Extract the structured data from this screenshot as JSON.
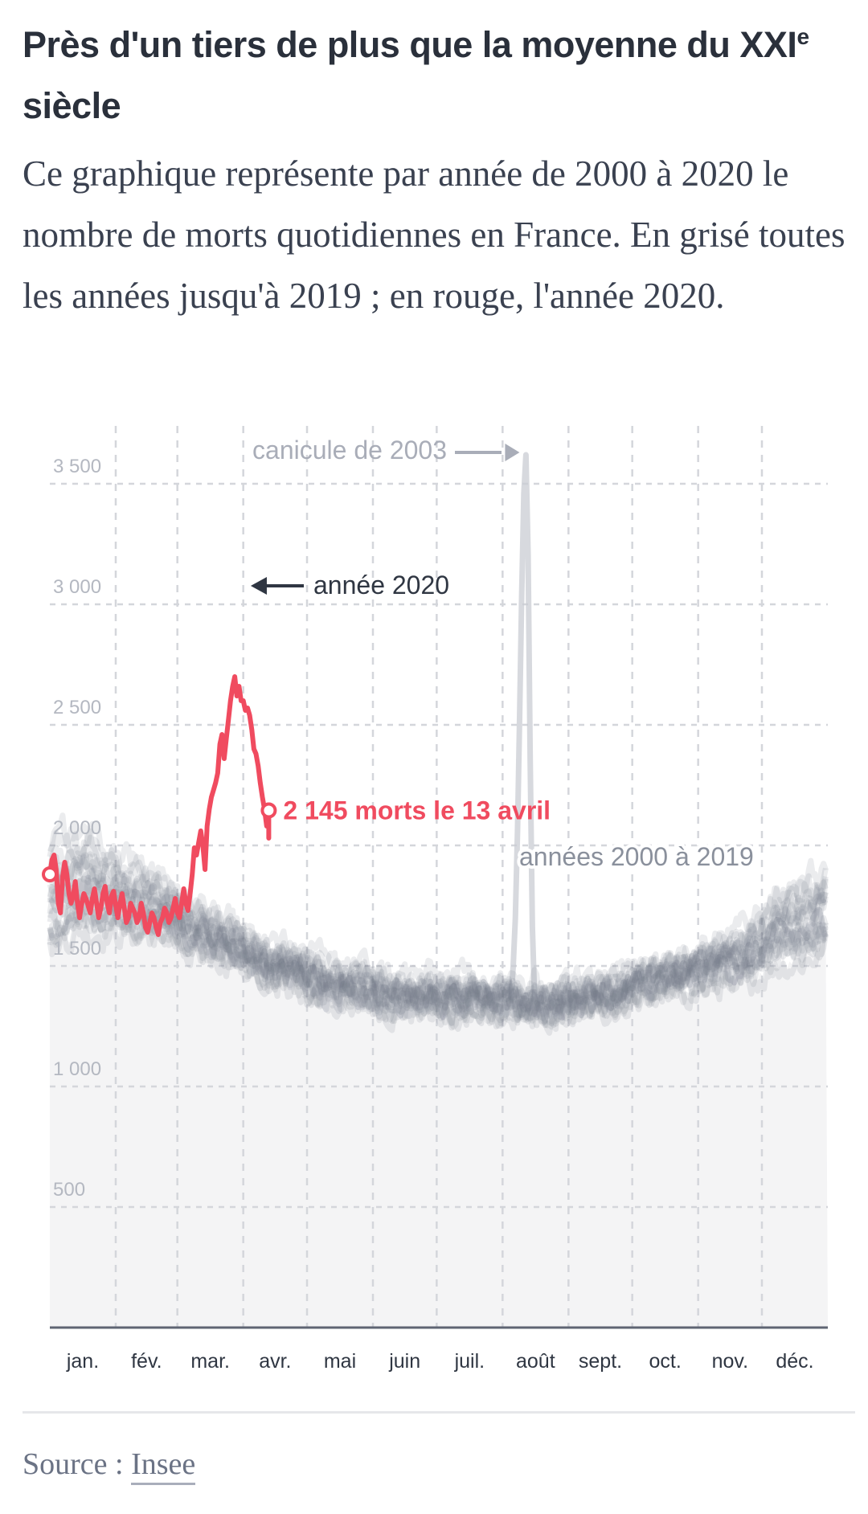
{
  "header": {
    "title_main": "Près d'un tiers de plus que la moyenne du XXI",
    "title_sup": "e",
    "title_end": " siècle",
    "subtitle": "Ce graphique représente par année de 2000 à 2020 le nombre de morts quotidiennes en France. En grisé toutes les années jusqu'à 2019 ; en rouge, l'année 2020."
  },
  "footer": {
    "source_label": "Source : ",
    "source_link": "Insee"
  },
  "colors": {
    "highlight": "#f04b5f",
    "background_years": "#6f7686",
    "annotation_dark": "#2f3642",
    "annotation_light": "#a9adb8",
    "grid": "#d4d6db",
    "lower_fill": "#f4f4f5",
    "axis": "#5f6573"
  },
  "chart_data": {
    "type": "line",
    "title": "Près d'un tiers de plus que la moyenne du XXIe siècle",
    "xlabel": "",
    "ylabel": "morts quotidiennes",
    "ylim": [
      0,
      3700
    ],
    "yticks": [
      500,
      1000,
      1500,
      2000,
      2500,
      3000,
      3500
    ],
    "ytick_labels": [
      "500",
      "1 000",
      "1 500",
      "2 000",
      "2 500",
      "3 000",
      "3 500"
    ],
    "x_unit": "day of year",
    "xlim": [
      0,
      366
    ],
    "months": [
      "jan.",
      "fév.",
      "mar.",
      "avr.",
      "mai",
      "juin",
      "juil.",
      "août",
      "sept.",
      "oct.",
      "nov.",
      "déc."
    ],
    "month_start_days": [
      0,
      31,
      60,
      91,
      121,
      152,
      182,
      213,
      244,
      274,
      305,
      335
    ],
    "grid": true,
    "annotations": {
      "heatwave": "canicule de 2003",
      "year2020": "année 2020",
      "last_point": "2 145 morts le 13 avril",
      "background": "années 2000 à 2019"
    },
    "series": [
      {
        "name": "2020",
        "start_day": 0,
        "values": [
          1880,
          1940,
          1960,
          1900,
          1760,
          1720,
          1870,
          1930,
          1880,
          1800,
          1760,
          1790,
          1850,
          1760,
          1700,
          1760,
          1800,
          1780,
          1750,
          1720,
          1780,
          1820,
          1760,
          1700,
          1740,
          1800,
          1830,
          1760,
          1720,
          1790,
          1810,
          1750,
          1700,
          1760,
          1800,
          1740,
          1680,
          1700,
          1760,
          1740,
          1720,
          1680,
          1700,
          1760,
          1720,
          1660,
          1640,
          1680,
          1720,
          1700,
          1660,
          1630,
          1680,
          1700,
          1740,
          1720,
          1680,
          1700,
          1740,
          1780,
          1720,
          1700,
          1760,
          1820,
          1760,
          1730,
          1800,
          1880,
          1990,
          1960,
          2010,
          2060,
          2000,
          1900,
          2080,
          2150,
          2200,
          2230,
          2260,
          2300,
          2420,
          2460,
          2360,
          2440,
          2520,
          2600,
          2660,
          2700,
          2620,
          2660,
          2600,
          2600,
          2560,
          2570,
          2540,
          2480,
          2400,
          2380,
          2330,
          2260,
          2200,
          2150,
          2080,
          2145
        ],
        "final_point": {
          "day": 103,
          "value": 2145,
          "label": "13 avril"
        }
      }
    ],
    "background_years": {
      "range": "2000-2019",
      "monthly_profile_early": [
        1720,
        1680,
        1560,
        1450,
        1380,
        1330,
        1320,
        1300,
        1340,
        1410,
        1460,
        1560
      ],
      "monthly_profile_late": [
        1850,
        1800,
        1680,
        1560,
        1470,
        1430,
        1420,
        1380,
        1420,
        1500,
        1560,
        1720
      ],
      "heatwave_2003": {
        "peak_day": 224,
        "peak_value": 3620
      }
    }
  }
}
